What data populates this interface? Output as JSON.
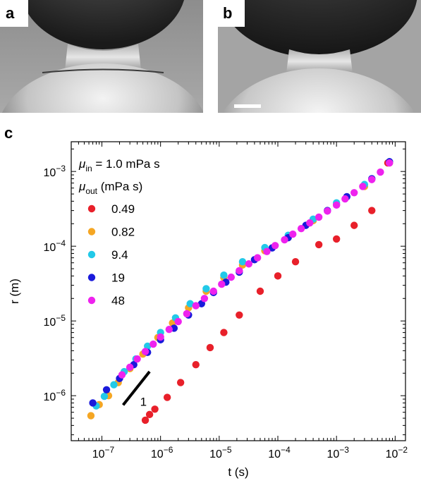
{
  "panels": {
    "a": {
      "label": "a"
    },
    "b": {
      "label": "b"
    },
    "c": {
      "label": "c"
    }
  },
  "chart_data": {
    "type": "scatter",
    "xscale": "log",
    "yscale": "log",
    "xlabel": "t (s)",
    "ylabel": "r (m)",
    "xlim": [
      3e-08,
      0.015
    ],
    "ylim": [
      2.5e-07,
      0.0025
    ],
    "xticks": [
      {
        "value": 1e-07,
        "base": "10",
        "exp": "−7"
      },
      {
        "value": 1e-06,
        "base": "10",
        "exp": "−6"
      },
      {
        "value": 1e-05,
        "base": "10",
        "exp": "−5"
      },
      {
        "value": 0.0001,
        "base": "10",
        "exp": "−4"
      },
      {
        "value": 0.001,
        "base": "10",
        "exp": "−3"
      },
      {
        "value": 0.01,
        "base": "10",
        "exp": "−2"
      }
    ],
    "yticks": [
      {
        "value": 1e-06,
        "base": "10",
        "exp": "−6"
      },
      {
        "value": 1e-05,
        "base": "10",
        "exp": "−5"
      },
      {
        "value": 0.0001,
        "base": "10",
        "exp": "−4"
      },
      {
        "value": 0.001,
        "base": "10",
        "exp": "−3"
      }
    ],
    "annotation": {
      "mu_in_symbol": "μ",
      "mu_in_sub": "in",
      "mu_in_text": " = 1.0 mPa s",
      "mu_out_symbol": "μ",
      "mu_out_sub": "out",
      "mu_out_text": " (mPa s)"
    },
    "slope_label": "1",
    "slope_line": {
      "x": [
        2.3e-07,
        6.5e-07
      ],
      "y": [
        7.5e-07,
        2.1e-06
      ]
    },
    "legend_position": "top-left",
    "series": [
      {
        "name": "0.49",
        "color": "#e8202a",
        "x": [
          5.5e-07,
          6.5e-07,
          8e-07,
          1.3e-06,
          2.2e-06,
          4e-06,
          7e-06,
          1.2e-05,
          2.2e-05,
          5e-05,
          0.0001,
          0.0002,
          0.0005,
          0.001,
          0.002,
          0.004,
          0.0075
        ],
        "y": [
          4.7e-07,
          5.6e-07,
          6.6e-07,
          9.5e-07,
          1.5e-06,
          2.6e-06,
          4.4e-06,
          7e-06,
          1.2e-05,
          2.5e-05,
          4e-05,
          6.2e-05,
          0.000105,
          0.000125,
          0.00019,
          0.0003,
          0.0013
        ]
      },
      {
        "name": "0.82",
        "color": "#f5a623",
        "x": [
          6.5e-08,
          9e-08,
          1.3e-07,
          1.9e-07,
          3e-07,
          5e-07,
          9e-07,
          1.6e-06,
          3e-06,
          6e-06,
          1.2e-05,
          2.5e-05,
          6e-05,
          0.00015,
          0.0004,
          0.001,
          0.003,
          0.008
        ],
        "y": [
          5.4e-07,
          7.6e-07,
          1e-06,
          1.5e-06,
          2.3e-06,
          3.6e-06,
          6e-06,
          9.4e-06,
          1.5e-05,
          2.5e-05,
          3.8e-05,
          5.6e-05,
          8.7e-05,
          0.00013,
          0.00022,
          0.00036,
          0.00063,
          0.0013
        ]
      },
      {
        "name": "9.4",
        "color": "#22c9e8",
        "x": [
          8e-08,
          1.1e-07,
          1.6e-07,
          2.4e-07,
          3.8e-07,
          6e-07,
          1e-06,
          1.8e-06,
          3.2e-06,
          6e-06,
          1.2e-05,
          2.5e-05,
          6e-05,
          0.00015,
          0.0004,
          0.001,
          0.003,
          0.008
        ],
        "y": [
          7.3e-07,
          9.8e-07,
          1.4e-06,
          2.1e-06,
          3.1e-06,
          4.6e-06,
          7e-06,
          1.1e-05,
          1.7e-05,
          2.7e-05,
          4.1e-05,
          6.2e-05,
          9.6e-05,
          0.00014,
          0.00023,
          0.00038,
          0.00067,
          0.00135
        ]
      },
      {
        "name": "19",
        "color": "#1a1adb",
        "x": [
          7e-08,
          1.2e-07,
          2e-07,
          3.5e-07,
          6e-07,
          1e-06,
          1.7e-06,
          3e-06,
          5e-06,
          8e-06,
          1.3e-05,
          2.2e-05,
          4e-05,
          8e-05,
          0.00015,
          0.0003,
          0.0007,
          0.0015,
          0.004,
          0.008
        ],
        "y": [
          8e-07,
          1.2e-06,
          1.7e-06,
          2.6e-06,
          3.8e-06,
          5.6e-06,
          8e-06,
          1.2e-05,
          1.7e-05,
          2.4e-05,
          3.3e-05,
          4.5e-05,
          6.6e-05,
          9.5e-05,
          0.00013,
          0.00019,
          0.0003,
          0.00046,
          0.0008,
          0.00135
        ]
      },
      {
        "name": "48",
        "color": "#ee22ee",
        "x": [
          2.2e-07,
          3e-07,
          4e-07,
          5.5e-07,
          7.5e-07,
          1e-06,
          1.4e-06,
          2e-06,
          2.8e-06,
          4e-06,
          5.6e-06,
          8e-06,
          1.1e-05,
          1.6e-05,
          2.2e-05,
          3.2e-05,
          4.5e-05,
          6.5e-05,
          9e-05,
          0.00013,
          0.00018,
          0.00025,
          0.00035,
          0.0005,
          0.0007,
          0.001,
          0.0014,
          0.002,
          0.0028,
          0.004,
          0.0056,
          0.008
        ],
        "y": [
          1.9e-06,
          2.4e-06,
          3.1e-06,
          3.9e-06,
          4.9e-06,
          6.1e-06,
          7.7e-06,
          9.8e-06,
          1.25e-05,
          1.6e-05,
          2e-05,
          2.5e-05,
          3.1e-05,
          3.85e-05,
          4.7e-05,
          5.8e-05,
          7e-05,
          8.5e-05,
          0.000102,
          0.000122,
          0.000145,
          0.000172,
          0.000205,
          0.000245,
          0.000295,
          0.000355,
          0.00043,
          0.00052,
          0.00063,
          0.00078,
          0.00098,
          0.0013
        ]
      }
    ]
  }
}
